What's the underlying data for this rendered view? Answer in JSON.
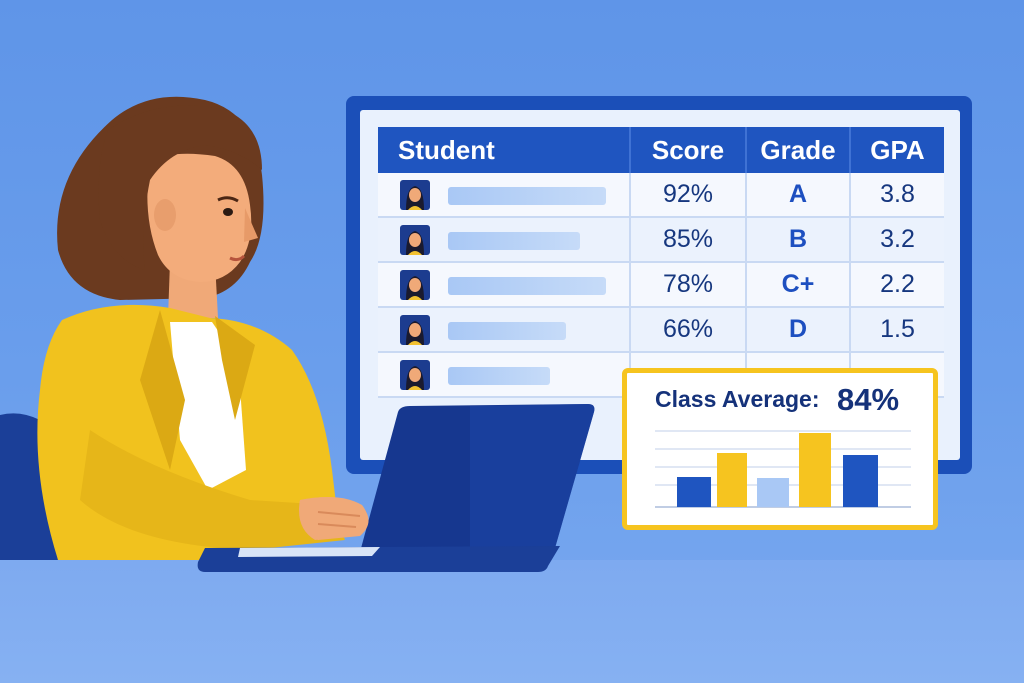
{
  "table": {
    "headers": {
      "student": "Student",
      "score": "Score",
      "grade": "Grade",
      "gpa": "GPA"
    },
    "rows": [
      {
        "score": "92%",
        "grade": "A",
        "gpa": "3.8"
      },
      {
        "score": "85%",
        "grade": "B",
        "gpa": "3.2"
      },
      {
        "score": "78%",
        "grade": "C+",
        "gpa": "2.2"
      },
      {
        "score": "66%",
        "grade": "D",
        "gpa": "1.5"
      },
      {
        "score": "",
        "grade": "",
        "gpa": ""
      }
    ]
  },
  "summary": {
    "label": "Class Average:",
    "value": "84%"
  },
  "colors": {
    "accent_blue": "#1f55c0",
    "accent_yellow": "#f6c41f",
    "background": "#6a9eec"
  }
}
